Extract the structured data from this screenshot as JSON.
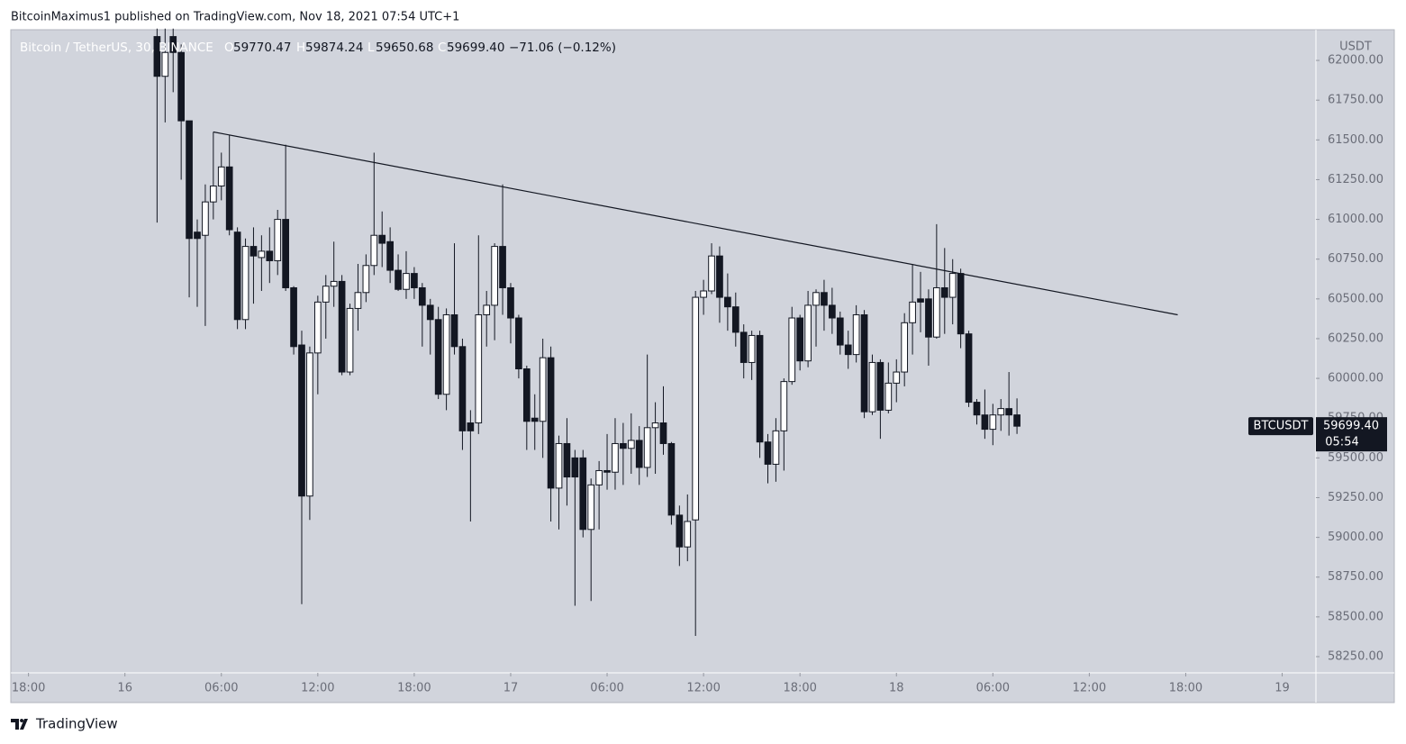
{
  "header": {
    "published": "BitcoinMaximus1 published on TradingView.com, Nov 18, 2021 07:54 UTC+1"
  },
  "footer": {
    "brand": "TradingView"
  },
  "chart_data": {
    "type": "candlestick",
    "symbol": "Bitcoin / TetherUS, 30, BINANCE",
    "legend": {
      "o_label": "O",
      "open": "59770.47",
      "h_label": "H",
      "high": "59874.24",
      "l_label": "L",
      "low": "59650.68",
      "c_label": "C",
      "close": "59699.40",
      "change": "−71.06 (−0.12%)"
    },
    "price_label": {
      "ticker": "BTCUSDT",
      "price": "59699.40",
      "countdown": "05:54"
    },
    "y_unit": "USDT",
    "up_color": "#ffffff",
    "down_color": "#131722",
    "background": "#d1d4dc",
    "grid": false,
    "x": [
      4,
      5,
      6,
      7,
      8,
      9,
      10,
      11,
      12,
      13,
      14,
      15,
      16,
      17,
      18,
      19,
      20,
      21,
      22,
      23,
      24,
      25,
      26,
      27,
      28,
      29,
      30,
      31,
      32,
      33,
      34,
      35,
      36,
      37,
      38,
      39,
      40,
      41,
      42,
      43,
      44,
      45,
      46,
      47,
      48,
      49,
      50,
      51,
      52,
      53,
      54,
      55,
      56,
      57,
      58,
      59,
      60,
      61,
      62,
      63,
      64,
      65,
      66,
      67,
      68,
      69,
      70,
      71,
      72,
      73,
      74,
      75,
      76,
      77,
      78,
      79,
      80,
      81,
      82,
      83,
      84,
      85,
      86,
      87,
      88,
      89,
      90,
      91,
      92,
      93,
      94,
      95,
      96,
      97,
      98,
      99,
      100,
      101,
      102,
      103,
      104,
      105,
      106,
      107,
      108,
      109,
      110,
      111
    ],
    "open": [
      62150,
      61900,
      62150,
      62050,
      61620,
      60920,
      60900,
      61110,
      61210,
      61330,
      60920,
      60370,
      60830,
      60760,
      60800,
      60740,
      61000,
      60570,
      60210,
      59260,
      60160,
      60480,
      60580,
      60610,
      60040,
      60440,
      60540,
      60710,
      60900,
      60860,
      60680,
      60560,
      60660,
      60570,
      60460,
      60370,
      59900,
      60400,
      60200,
      59720,
      59720,
      60400,
      60460,
      60830,
      60570,
      60380,
      60060,
      59750,
      59730,
      60130,
      59310,
      59590,
      59500,
      59500,
      59050,
      59330,
      59420,
      59410,
      59590,
      59560,
      59610,
      59440,
      59690,
      59720,
      59590,
      59140,
      58940,
      59110,
      60510,
      60550,
      60770,
      60510,
      60450,
      60290,
      60100,
      60270,
      59600,
      59460,
      59670,
      59980,
      60380,
      60110,
      60460,
      60540,
      60460,
      60380,
      60210,
      60150,
      60400,
      59790,
      60100,
      59800,
      59970,
      60040,
      60350,
      60500,
      60500,
      60260,
      60570,
      60510,
      60660,
      60280,
      59850,
      59770,
      59680,
      59770,
      59810,
      59770.47
    ],
    "high": [
      62200,
      62200,
      62200,
      62100,
      61620,
      61000,
      61220,
      61550,
      61420,
      61530,
      60950,
      60880,
      60950,
      60900,
      60950,
      61060,
      61470,
      60580,
      60300,
      60200,
      60520,
      60650,
      60860,
      60650,
      60470,
      60720,
      60780,
      61420,
      61050,
      60950,
      60780,
      60800,
      60700,
      60600,
      60500,
      60450,
      60440,
      60850,
      60250,
      59800,
      60900,
      60550,
      60850,
      61220,
      60600,
      60400,
      60080,
      59900,
      60250,
      60200,
      59640,
      59750,
      59550,
      59550,
      59370,
      59480,
      59650,
      59750,
      59720,
      59780,
      59700,
      60150,
      59850,
      59950,
      59600,
      59200,
      59270,
      60550,
      60620,
      60850,
      60830,
      60660,
      60540,
      60340,
      60300,
      60300,
      59650,
      59750,
      60000,
      60450,
      60400,
      60550,
      60560,
      60620,
      60570,
      60420,
      60300,
      60460,
      60430,
      60150,
      60120,
      60100,
      60120,
      60410,
      60720,
      60670,
      60560,
      60970,
      60820,
      60750,
      60690,
      60300,
      59870,
      59930,
      59840,
      59870,
      60040,
      59874.24
    ],
    "low": [
      60980,
      61610,
      61800,
      61250,
      60510,
      60450,
      60330,
      61000,
      61120,
      60900,
      60310,
      60310,
      60470,
      60550,
      60600,
      60650,
      60550,
      60150,
      58580,
      59110,
      59900,
      60250,
      60450,
      60020,
      60020,
      60300,
      60480,
      60650,
      60700,
      60600,
      60550,
      60500,
      60500,
      60200,
      60150,
      59870,
      59800,
      60150,
      59550,
      59100,
      59650,
      60200,
      60240,
      60400,
      60220,
      60000,
      59550,
      59550,
      59500,
      59100,
      59050,
      59200,
      58570,
      59000,
      58600,
      59050,
      59300,
      59300,
      59330,
      59400,
      59330,
      59380,
      59400,
      59520,
      59080,
      58820,
      58850,
      58380,
      60400,
      60530,
      60350,
      60300,
      60200,
      60000,
      59990,
      59500,
      59340,
      59350,
      59420,
      59960,
      60050,
      60070,
      60200,
      60300,
      60280,
      60150,
      60060,
      60100,
      59750,
      59770,
      59620,
      59780,
      59850,
      59950,
      60150,
      60290,
      60080,
      60250,
      60280,
      60340,
      60190,
      59820,
      59710,
      59620,
      59580,
      59670,
      59640,
      59650.68
    ],
    "close": [
      61900,
      62050,
      62050,
      61620,
      60880,
      60880,
      61110,
      61210,
      61330,
      60935,
      60370,
      60830,
      60770,
      60800,
      60740,
      61000,
      60570,
      60200,
      59260,
      60160,
      60480,
      60580,
      60610,
      60040,
      60440,
      60540,
      60710,
      60900,
      60850,
      60680,
      60560,
      60660,
      60570,
      60460,
      60370,
      59900,
      60400,
      60200,
      59670,
      59670,
      60400,
      60460,
      60830,
      60570,
      60380,
      60060,
      59730,
      59730,
      60130,
      59310,
      59590,
      59380,
      59380,
      59050,
      59330,
      59420,
      59410,
      59590,
      59560,
      59610,
      59440,
      59690,
      59720,
      59590,
      59140,
      58940,
      59100,
      60510,
      60550,
      60770,
      60510,
      60450,
      60290,
      60100,
      60270,
      59600,
      59460,
      59670,
      59980,
      60380,
      60110,
      60460,
      60540,
      60460,
      60380,
      60210,
      60150,
      60400,
      59790,
      60100,
      59800,
      59970,
      60040,
      60350,
      60480,
      60480,
      60260,
      60570,
      60510,
      60660,
      60280,
      59850,
      59770,
      59680,
      59770,
      59810,
      59770,
      59699.4
    ],
    "trendline": {
      "x": [
        11,
        131
      ],
      "values": [
        61550,
        60400
      ],
      "color": "#131722"
    },
    "xlim": [
      -14.2,
      148.2
    ],
    "xticks": [
      {
        "value": -12,
        "label": "18:00"
      },
      {
        "value": 0,
        "label": "16"
      },
      {
        "value": 12,
        "label": "06:00"
      },
      {
        "value": 24,
        "label": "12:00"
      },
      {
        "value": 36,
        "label": "18:00"
      },
      {
        "value": 48,
        "label": "17"
      },
      {
        "value": 60,
        "label": "06:00"
      },
      {
        "value": 72,
        "label": "12:00"
      },
      {
        "value": 84,
        "label": "18:00"
      },
      {
        "value": 96,
        "label": "18"
      },
      {
        "value": 108,
        "label": "06:00"
      },
      {
        "value": 120,
        "label": "12:00"
      },
      {
        "value": 132,
        "label": "18:00"
      },
      {
        "value": 144,
        "label": "19"
      }
    ],
    "ylim": [
      58148,
      62193
    ],
    "yticks": [
      {
        "value": 58250,
        "label": "58250.00"
      },
      {
        "value": 58500,
        "label": "58500.00"
      },
      {
        "value": 58750,
        "label": "58750.00"
      },
      {
        "value": 59000,
        "label": "59000.00"
      },
      {
        "value": 59250,
        "label": "59250.00"
      },
      {
        "value": 59500,
        "label": "59500.00"
      },
      {
        "value": 59750,
        "label": "59750.00"
      },
      {
        "value": 60000,
        "label": "60000.00"
      },
      {
        "value": 60250,
        "label": "60250.00"
      },
      {
        "value": 60500,
        "label": "60500.00"
      },
      {
        "value": 60750,
        "label": "60750.00"
      },
      {
        "value": 61000,
        "label": "61000.00"
      },
      {
        "value": 61250,
        "label": "61250.00"
      },
      {
        "value": 61500,
        "label": "61500.00"
      },
      {
        "value": 61750,
        "label": "61750.00"
      },
      {
        "value": 62000,
        "label": "62000.00"
      }
    ]
  }
}
